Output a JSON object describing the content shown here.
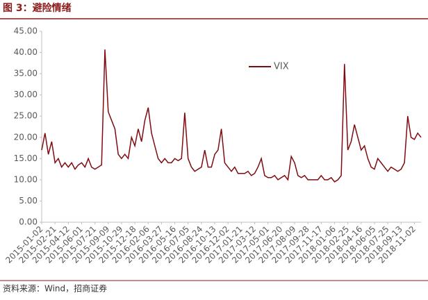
{
  "chart_data": {
    "type": "line",
    "title": "图 3：避险情绪",
    "source": "资料来源：Wind，招商证券",
    "categories": [
      "2015-01-02",
      null,
      null,
      null,
      "2015-02-21",
      null,
      null,
      null,
      "2015-04-12",
      null,
      null,
      null,
      "2015-06-01",
      null,
      null,
      null,
      "2015-07-21",
      null,
      null,
      null,
      "2015-09-09",
      null,
      null,
      null,
      "2015-10-29",
      null,
      null,
      null,
      "2015-12-18",
      null,
      null,
      null,
      "2016-02-06",
      null,
      null,
      null,
      "2016-03-27",
      null,
      null,
      null,
      "2016-05-16",
      null,
      null,
      null,
      "2016-07-05",
      null,
      null,
      null,
      "2016-08-24",
      null,
      null,
      null,
      "2016-10-13",
      null,
      null,
      null,
      "2016-12-02",
      null,
      null,
      null,
      "2017-01-21",
      null,
      null,
      null,
      "2017-03-12",
      null,
      null,
      null,
      "2017-05-01",
      null,
      null,
      null,
      "2017-06-20",
      null,
      null,
      null,
      "2017-08-09",
      null,
      null,
      null,
      "2017-09-28",
      null,
      null,
      null,
      "2017-11-17",
      null,
      null,
      null,
      "2018-01-06",
      null,
      null,
      null,
      "2018-02-25",
      null,
      null,
      null,
      "2018-04-16",
      null,
      null,
      null,
      "2018-06-05",
      null,
      null,
      null,
      "2018-07-25",
      null,
      null,
      null,
      "2018-09-13",
      null,
      null,
      null,
      "2018-11-02",
      null,
      null
    ],
    "series": [
      {
        "name": "VIX",
        "color": "#7f0a10",
        "values": [
          17,
          21,
          16,
          19,
          14,
          15,
          13,
          14,
          13,
          14,
          12.5,
          13.5,
          14,
          13,
          15,
          13,
          12.5,
          13,
          13.5,
          40.7,
          26,
          24,
          22,
          16,
          15,
          16,
          15,
          20,
          18,
          22,
          19,
          24,
          27,
          21,
          18,
          15,
          14,
          15,
          14,
          14,
          15,
          14.5,
          15,
          25.8,
          15,
          13,
          12,
          12.5,
          13,
          17,
          13,
          13,
          16,
          17,
          22,
          14,
          13,
          12,
          13,
          11.5,
          11.5,
          11.5,
          12,
          11,
          11.5,
          13,
          15,
          11,
          10.5,
          10.5,
          11,
          10,
          10.5,
          11,
          10,
          15.5,
          14,
          11,
          10.5,
          11,
          10,
          10,
          10,
          10,
          11,
          10,
          10,
          10.5,
          9.5,
          10,
          11,
          37.3,
          17,
          19,
          23,
          20,
          17,
          18,
          15,
          13,
          12.5,
          15,
          14,
          13,
          12,
          13,
          12.5,
          12,
          12.5,
          14,
          25,
          20,
          19.5,
          21,
          20
        ]
      }
    ],
    "ylim": [
      0,
      45
    ],
    "yticks": [
      {
        "value": 0,
        "label": "0.00"
      },
      {
        "value": 5,
        "label": "5.00"
      },
      {
        "value": 10,
        "label": "10.00"
      },
      {
        "value": 15,
        "label": "15.00"
      },
      {
        "value": 20,
        "label": "20.00"
      },
      {
        "value": 25,
        "label": "25.00"
      },
      {
        "value": 30,
        "label": "30.00"
      },
      {
        "value": 35,
        "label": "35.00"
      },
      {
        "value": 40,
        "label": "40.00"
      },
      {
        "value": 45,
        "label": "45.00"
      }
    ],
    "grid": false
  }
}
